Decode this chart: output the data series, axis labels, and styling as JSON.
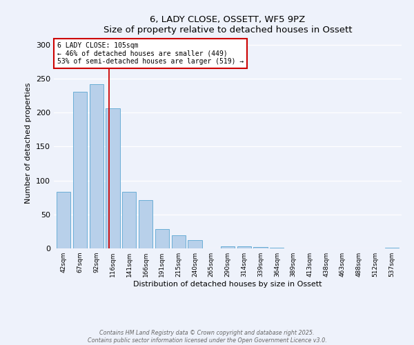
{
  "title": "6, LADY CLOSE, OSSETT, WF5 9PZ",
  "subtitle": "Size of property relative to detached houses in Ossett",
  "xlabel": "Distribution of detached houses by size in Ossett",
  "ylabel": "Number of detached properties",
  "bar_labels": [
    "42sqm",
    "67sqm",
    "92sqm",
    "116sqm",
    "141sqm",
    "166sqm",
    "191sqm",
    "215sqm",
    "240sqm",
    "265sqm",
    "290sqm",
    "314sqm",
    "339sqm",
    "364sqm",
    "389sqm",
    "413sqm",
    "438sqm",
    "463sqm",
    "488sqm",
    "512sqm",
    "537sqm"
  ],
  "bar_values": [
    83,
    231,
    242,
    206,
    83,
    71,
    28,
    19,
    12,
    0,
    3,
    3,
    2,
    1,
    0,
    0,
    0,
    0,
    0,
    0,
    1
  ],
  "bar_color": "#b8d0ea",
  "bar_edge_color": "#6aaed6",
  "background_color": "#eef2fb",
  "vline_x": 2.75,
  "vline_color": "#cc0000",
  "annotation_text": "6 LADY CLOSE: 105sqm\n← 46% of detached houses are smaller (449)\n53% of semi-detached houses are larger (519) →",
  "annotation_box_color": "#ffffff",
  "annotation_box_edge": "#cc0000",
  "ylim": [
    0,
    310
  ],
  "yticks": [
    0,
    50,
    100,
    150,
    200,
    250,
    300
  ],
  "footer_line1": "Contains HM Land Registry data © Crown copyright and database right 2025.",
  "footer_line2": "Contains public sector information licensed under the Open Government Licence v3.0."
}
